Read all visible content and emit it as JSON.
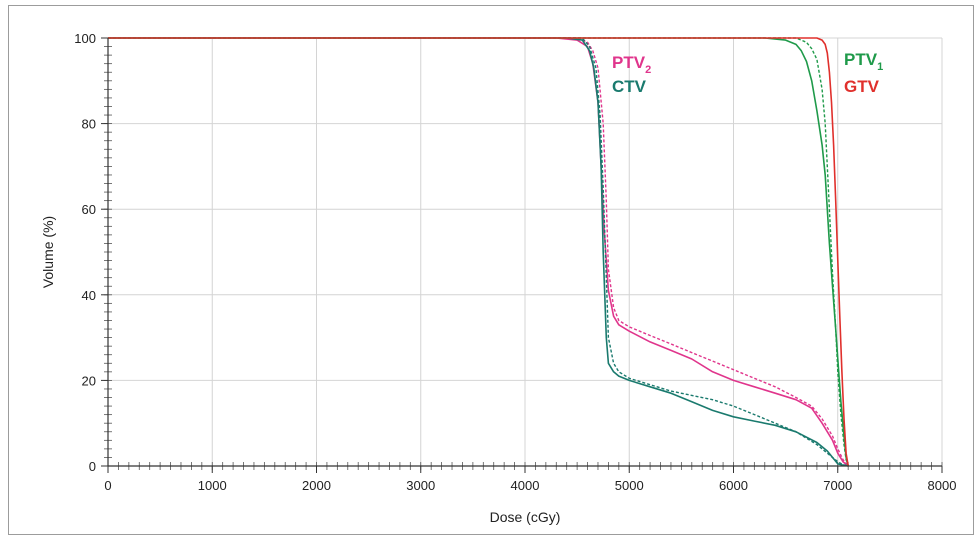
{
  "chart_data": {
    "type": "line",
    "xlabel": "Dose (cGy)",
    "ylabel": "Volume (%)",
    "xlim": [
      0,
      8000
    ],
    "ylim": [
      0,
      100
    ],
    "x_ticks": [
      "0",
      "1000",
      "2000",
      "3000",
      "4000",
      "5000",
      "6000",
      "7000",
      "8000"
    ],
    "y_ticks": [
      "0",
      "20",
      "40",
      "60",
      "80",
      "100"
    ],
    "grid": true,
    "series_labels": [
      {
        "main": "PTV",
        "sub": "2",
        "color": "#e0358c"
      },
      {
        "main": "CTV",
        "sub": "",
        "color": "#1a7a6e"
      },
      {
        "main": "PTV",
        "sub": "1",
        "color": "#1f9a4a"
      },
      {
        "main": "GTV",
        "sub": "",
        "color": "#e0302c"
      }
    ],
    "series": [
      {
        "label_index": 0,
        "color": "#e0358c",
        "style": "solid",
        "x": [
          0,
          4300,
          4500,
          4600,
          4650,
          4700,
          4720,
          4760,
          4800,
          4850,
          4900,
          5000,
          5200,
          5400,
          5600,
          5800,
          6000,
          6200,
          6400,
          6600,
          6750,
          6850,
          6950,
          7000,
          7050,
          7100
        ],
        "y": [
          100,
          100,
          99.5,
          98,
          94,
          85,
          75,
          55,
          41,
          35,
          33,
          31.5,
          29,
          27,
          25,
          22,
          20,
          18.5,
          17,
          15.5,
          13.5,
          10,
          6,
          3,
          1,
          0
        ]
      },
      {
        "label_index": 0,
        "color": "#e0358c",
        "style": "dashed",
        "x": [
          0,
          4500,
          4600,
          4650,
          4700,
          4750,
          4780,
          4800,
          4850,
          4900,
          5000,
          5200,
          5400,
          5600,
          5800,
          6000,
          6200,
          6400,
          6600,
          6750,
          6850,
          6950,
          7000,
          7050,
          7100
        ],
        "y": [
          100,
          100,
          99,
          97,
          93,
          80,
          62,
          46,
          37,
          34,
          32.5,
          30.5,
          28.5,
          26.5,
          24.5,
          22.5,
          20.5,
          18.5,
          16,
          14,
          11,
          7,
          4,
          1.5,
          0
        ]
      },
      {
        "label_index": 1,
        "color": "#1a7a6e",
        "style": "solid",
        "x": [
          0,
          4400,
          4550,
          4620,
          4660,
          4700,
          4730,
          4750,
          4780,
          4800,
          4850,
          4900,
          5000,
          5200,
          5400,
          5600,
          5800,
          6000,
          6200,
          6400,
          6600,
          6800,
          6900,
          6950,
          7000,
          7050,
          7100
        ],
        "y": [
          100,
          100,
          99.5,
          97,
          93,
          85,
          70,
          50,
          30,
          24,
          22,
          21,
          20,
          18.5,
          17,
          15,
          13,
          11.5,
          10.5,
          9.5,
          8,
          5.5,
          3.5,
          2,
          0.5,
          0.2,
          0
        ]
      },
      {
        "label_index": 1,
        "color": "#1a7a6e",
        "style": "dashed",
        "x": [
          0,
          4550,
          4620,
          4680,
          4720,
          4750,
          4780,
          4800,
          4850,
          4900,
          5000,
          5200,
          5400,
          5600,
          5800,
          6000,
          6200,
          6400,
          6600,
          6800,
          6900,
          6950,
          7000,
          7050,
          7100
        ],
        "y": [
          100,
          100,
          98,
          93,
          82,
          65,
          44,
          30,
          24,
          22,
          20.5,
          19,
          17.5,
          16.5,
          15.5,
          14,
          12,
          10,
          8,
          5,
          3,
          2,
          1,
          0.3,
          0
        ]
      },
      {
        "label_index": 2,
        "color": "#1f9a4a",
        "style": "solid",
        "x": [
          0,
          6300,
          6500,
          6600,
          6650,
          6700,
          6750,
          6800,
          6850,
          6880,
          6900,
          6920,
          6950,
          6980,
          7000,
          7030,
          7060,
          7080,
          7100
        ],
        "y": [
          100,
          100,
          99.5,
          98.5,
          97,
          94.5,
          90,
          83,
          75,
          68,
          60,
          52,
          42,
          32,
          25,
          15,
          7,
          2,
          0
        ]
      },
      {
        "label_index": 2,
        "color": "#1f9a4a",
        "style": "dashed",
        "x": [
          0,
          6600,
          6700,
          6750,
          6800,
          6850,
          6880,
          6900,
          6920,
          6950,
          6980,
          7000,
          7030,
          7060,
          7080,
          7100
        ],
        "y": [
          100,
          100,
          99,
          97.5,
          95,
          88,
          80,
          70,
          60,
          45,
          32,
          22,
          12,
          5,
          1.5,
          0
        ]
      },
      {
        "label_index": 3,
        "color": "#e0302c",
        "style": "solid",
        "x": [
          0,
          6800,
          6850,
          6880,
          6900,
          6920,
          6940,
          6960,
          6980,
          7000,
          7020,
          7040,
          7060,
          7080,
          7100
        ],
        "y": [
          100,
          100,
          99.5,
          98.5,
          96.5,
          92,
          85,
          75,
          62,
          48,
          35,
          22,
          11,
          3,
          0
        ]
      }
    ]
  }
}
